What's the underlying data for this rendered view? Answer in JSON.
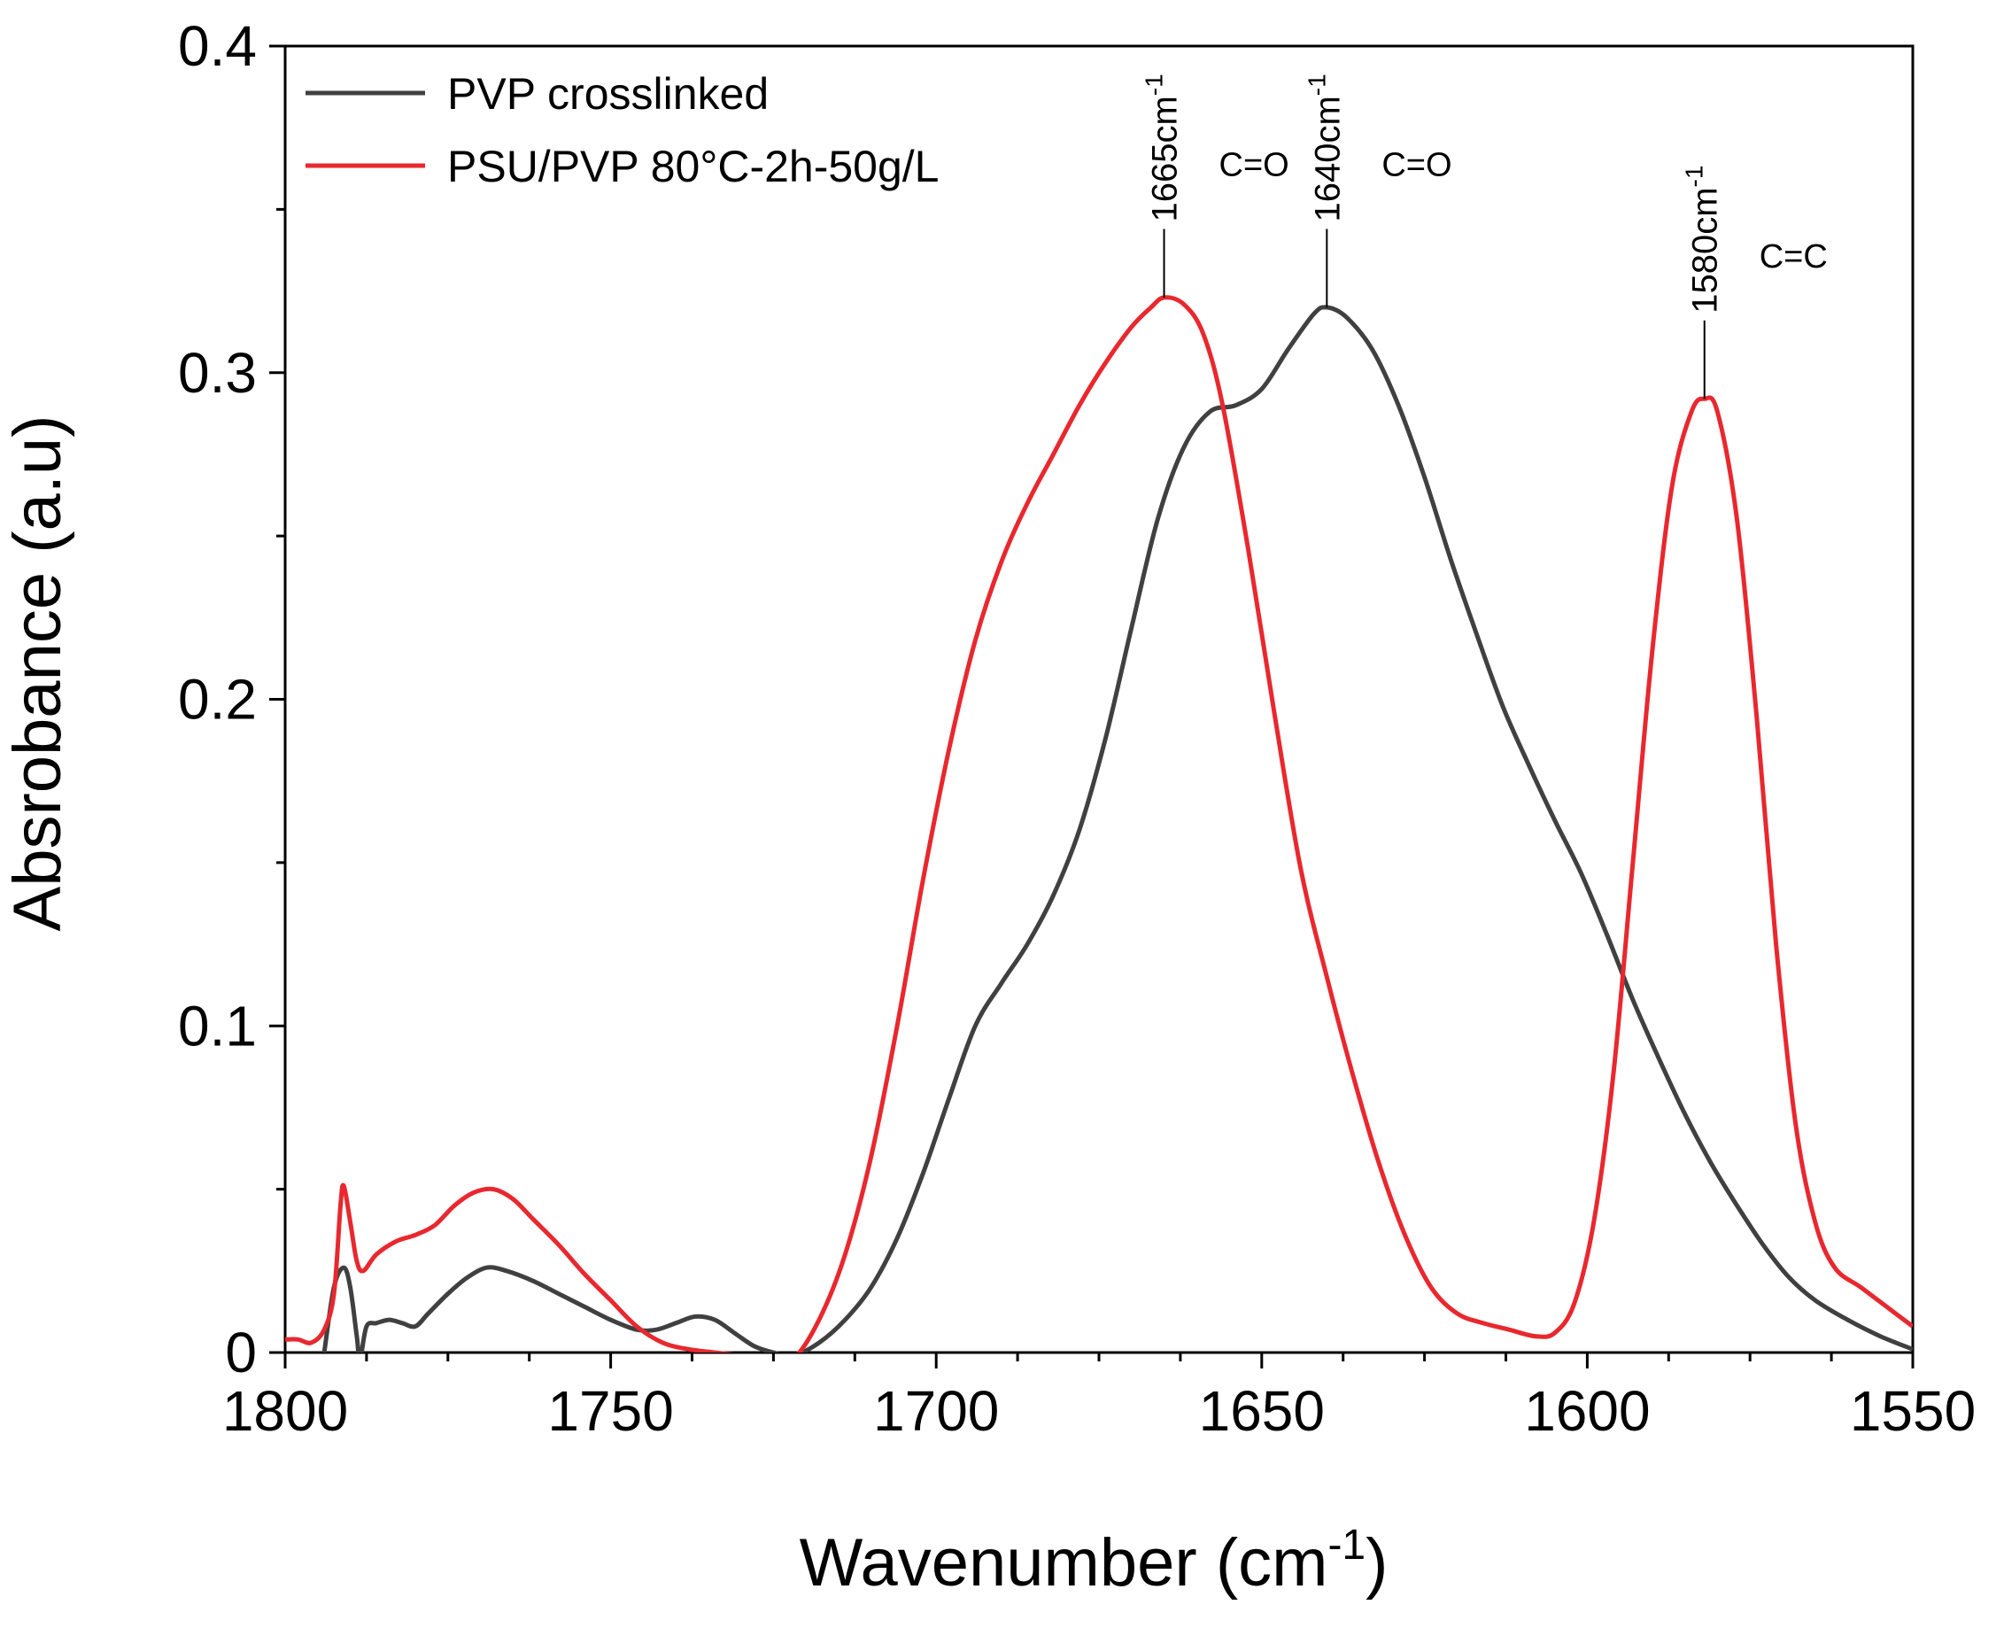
{
  "chart_data": {
    "type": "line",
    "title": "",
    "xlabel": "Wavenumber (cm",
    "xlabel_sup": "-1",
    "xlabel_close": ")",
    "ylabel": "Absrobance (a.u)",
    "xlim": [
      1800,
      1550
    ],
    "ylim": [
      0,
      0.4
    ],
    "x_ticks": [
      1800,
      1750,
      1700,
      1650,
      1600,
      1550
    ],
    "x_tick_labels": [
      "1800",
      "1750",
      "1700",
      "1650",
      "1600",
      "1550"
    ],
    "y_ticks": [
      0,
      0.1,
      0.2,
      0.3,
      0.4
    ],
    "y_tick_labels": [
      "0",
      "0.1",
      "0.2",
      "0.3",
      "0.4"
    ],
    "grid": false,
    "legend_position": "top-left",
    "series": [
      {
        "name": "PVP crosslinked",
        "color": "#404040",
        "points": [
          [
            1794,
            0.0
          ],
          [
            1792.5,
            0.02
          ],
          [
            1791,
            0.026
          ],
          [
            1790,
            0.02
          ],
          [
            1789,
            0.005
          ],
          [
            1788.5,
            -0.002
          ],
          [
            1787.5,
            0.008
          ],
          [
            1786,
            0.009
          ],
          [
            1784,
            0.01
          ],
          [
            1782,
            0.009
          ],
          [
            1780,
            0.008
          ],
          [
            1778,
            0.012
          ],
          [
            1775,
            0.018
          ],
          [
            1772,
            0.023
          ],
          [
            1769,
            0.026
          ],
          [
            1766,
            0.025
          ],
          [
            1762,
            0.022
          ],
          [
            1758,
            0.018
          ],
          [
            1754,
            0.014
          ],
          [
            1750,
            0.01
          ],
          [
            1746,
            0.007
          ],
          [
            1743,
            0.007
          ],
          [
            1740,
            0.009
          ],
          [
            1737,
            0.011
          ],
          [
            1734,
            0.01
          ],
          [
            1731,
            0.006
          ],
          [
            1728,
            0.002
          ],
          [
            1725,
            0.0
          ],
          [
            1722,
            -0.001
          ],
          [
            1718,
            0.003
          ],
          [
            1714,
            0.01
          ],
          [
            1710,
            0.02
          ],
          [
            1706,
            0.035
          ],
          [
            1702,
            0.055
          ],
          [
            1698,
            0.078
          ],
          [
            1694,
            0.1
          ],
          [
            1690,
            0.113
          ],
          [
            1686,
            0.125
          ],
          [
            1682,
            0.14
          ],
          [
            1678,
            0.16
          ],
          [
            1674,
            0.188
          ],
          [
            1670,
            0.222
          ],
          [
            1666,
            0.255
          ],
          [
            1662,
            0.277
          ],
          [
            1658,
            0.288
          ],
          [
            1654,
            0.29
          ],
          [
            1650,
            0.295
          ],
          [
            1646,
            0.307
          ],
          [
            1642,
            0.318
          ],
          [
            1640,
            0.32
          ],
          [
            1637,
            0.317
          ],
          [
            1633,
            0.307
          ],
          [
            1629,
            0.29
          ],
          [
            1625,
            0.268
          ],
          [
            1621,
            0.243
          ],
          [
            1617,
            0.22
          ],
          [
            1613,
            0.198
          ],
          [
            1609,
            0.18
          ],
          [
            1605,
            0.163
          ],
          [
            1601,
            0.147
          ],
          [
            1597,
            0.128
          ],
          [
            1593,
            0.108
          ],
          [
            1589,
            0.09
          ],
          [
            1585,
            0.073
          ],
          [
            1581,
            0.058
          ],
          [
            1577,
            0.045
          ],
          [
            1573,
            0.033
          ],
          [
            1569,
            0.023
          ],
          [
            1565,
            0.016
          ],
          [
            1560,
            0.01
          ],
          [
            1555,
            0.005
          ],
          [
            1550,
            0.001
          ]
        ]
      },
      {
        "name": "PSU/PVP 80°C-2h-50g/L",
        "color": "#e8282e",
        "points": [
          [
            1800,
            0.004
          ],
          [
            1798,
            0.004
          ],
          [
            1796,
            0.003
          ],
          [
            1794,
            0.007
          ],
          [
            1792.5,
            0.018
          ],
          [
            1791.5,
            0.045
          ],
          [
            1791,
            0.051
          ],
          [
            1790,
            0.04
          ],
          [
            1789,
            0.028
          ],
          [
            1788,
            0.025
          ],
          [
            1786,
            0.03
          ],
          [
            1783,
            0.034
          ],
          [
            1780,
            0.036
          ],
          [
            1777,
            0.039
          ],
          [
            1774,
            0.045
          ],
          [
            1771,
            0.049
          ],
          [
            1768,
            0.05
          ],
          [
            1765,
            0.047
          ],
          [
            1762,
            0.041
          ],
          [
            1758,
            0.033
          ],
          [
            1754,
            0.024
          ],
          [
            1750,
            0.016
          ],
          [
            1746,
            0.008
          ],
          [
            1742,
            0.003
          ],
          [
            1738,
            0.001
          ],
          [
            1734,
            0.0
          ],
          [
            1730,
            -0.001
          ],
          [
            1726,
            -0.003
          ],
          [
            1722,
            -0.002
          ],
          [
            1718,
            0.01
          ],
          [
            1714,
            0.03
          ],
          [
            1710,
            0.06
          ],
          [
            1706,
            0.1
          ],
          [
            1702,
            0.145
          ],
          [
            1698,
            0.185
          ],
          [
            1694,
            0.218
          ],
          [
            1690,
            0.242
          ],
          [
            1686,
            0.26
          ],
          [
            1682,
            0.275
          ],
          [
            1678,
            0.29
          ],
          [
            1674,
            0.303
          ],
          [
            1670,
            0.314
          ],
          [
            1667,
            0.32
          ],
          [
            1665,
            0.323
          ],
          [
            1662,
            0.321
          ],
          [
            1659,
            0.312
          ],
          [
            1656,
            0.29
          ],
          [
            1652,
            0.245
          ],
          [
            1648,
            0.195
          ],
          [
            1644,
            0.148
          ],
          [
            1640,
            0.115
          ],
          [
            1636,
            0.085
          ],
          [
            1632,
            0.058
          ],
          [
            1628,
            0.036
          ],
          [
            1624,
            0.02
          ],
          [
            1620,
            0.012
          ],
          [
            1616,
            0.009
          ],
          [
            1612,
            0.007
          ],
          [
            1608,
            0.005
          ],
          [
            1605,
            0.006
          ],
          [
            1602,
            0.015
          ],
          [
            1599,
            0.04
          ],
          [
            1596,
            0.085
          ],
          [
            1593,
            0.15
          ],
          [
            1590,
            0.215
          ],
          [
            1587,
            0.265
          ],
          [
            1584,
            0.288
          ],
          [
            1582,
            0.292
          ],
          [
            1580,
            0.288
          ],
          [
            1577,
            0.255
          ],
          [
            1574,
            0.195
          ],
          [
            1571,
            0.125
          ],
          [
            1568,
            0.07
          ],
          [
            1565,
            0.04
          ],
          [
            1562,
            0.026
          ],
          [
            1558,
            0.02
          ],
          [
            1554,
            0.014
          ],
          [
            1550,
            0.008
          ]
        ]
      }
    ],
    "annotations": [
      {
        "label": "1665cm",
        "sup": "-1",
        "bond": "C=O",
        "x": 1665,
        "y": 0.323,
        "line_top": 0.344
      },
      {
        "label": "1640cm",
        "sup": "-1",
        "bond": "C=O",
        "x": 1640,
        "y": 0.32,
        "line_top": 0.344
      },
      {
        "label": "1580cm",
        "sup": "-1",
        "bond": "C=C",
        "x": 1582,
        "y": 0.292,
        "line_top": 0.316
      }
    ]
  }
}
